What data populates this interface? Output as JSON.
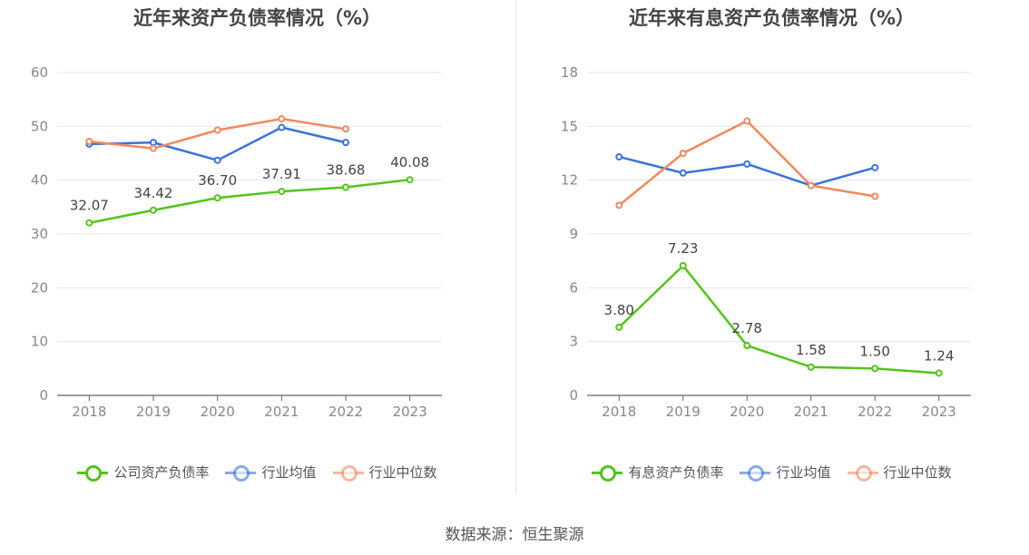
{
  "source": "数据来源：恒生聚源",
  "charts": [
    {
      "title": "近年来资产负债率情况（%）",
      "chart_data": {
        "type": "line",
        "categories": [
          "2018",
          "2019",
          "2020",
          "2021",
          "2022",
          "2023"
        ],
        "ylim": [
          0,
          60
        ],
        "yticks": [
          0,
          10,
          20,
          30,
          40,
          50,
          60
        ],
        "grid": true,
        "legend_position": "bottom",
        "series": [
          {
            "name": "公司资产负债率",
            "color": "#52c41a",
            "values": [
              32.07,
              34.42,
              36.7,
              37.91,
              38.68,
              40.08
            ],
            "labels": [
              "32.07",
              "34.42",
              "36.70",
              "37.91",
              "38.68",
              "40.08"
            ]
          },
          {
            "name": "行业均值",
            "color": "#3a73d9",
            "values": [
              46.7,
              47.0,
              43.7,
              49.8,
              47.0,
              null
            ]
          },
          {
            "name": "行业中位数",
            "color": "#f08a5d",
            "values": [
              47.2,
              45.9,
              49.3,
              51.4,
              49.5,
              null
            ]
          }
        ]
      }
    },
    {
      "title": "近年来有息资产负债率情况（%）",
      "chart_data": {
        "type": "line",
        "categories": [
          "2018",
          "2019",
          "2020",
          "2021",
          "2022",
          "2023"
        ],
        "ylim": [
          0,
          18
        ],
        "yticks": [
          0,
          3,
          6,
          9,
          12,
          15,
          18
        ],
        "grid": true,
        "legend_position": "bottom",
        "series": [
          {
            "name": "有息资产负债率",
            "color": "#52c41a",
            "values": [
              3.8,
              7.23,
              2.78,
              1.58,
              1.5,
              1.24
            ],
            "labels": [
              "3.80",
              "7.23",
              "2.78",
              "1.58",
              "1.50",
              "1.24"
            ]
          },
          {
            "name": "行业均值",
            "color": "#3a73d9",
            "values": [
              13.3,
              12.4,
              12.9,
              11.7,
              12.7,
              null
            ]
          },
          {
            "name": "行业中位数",
            "color": "#f08a5d",
            "values": [
              10.6,
              13.5,
              15.3,
              11.7,
              11.1,
              null
            ]
          }
        ]
      }
    }
  ]
}
